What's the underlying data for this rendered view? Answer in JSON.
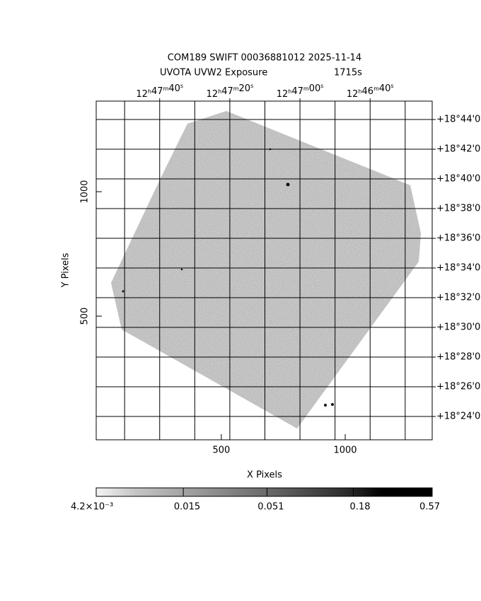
{
  "chart_data": {
    "type": "image",
    "title": "COM189 SWIFT 00036881012 2025-11-14",
    "subtitle": "UVOTA UVW2 Exposure",
    "exposure": "1715s",
    "x_label": "X Pixels",
    "y_label": "Y Pixels",
    "xlim": [
      -5,
      1351
    ],
    "ylim": [
      3,
      1364
    ],
    "xticks": [
      500,
      1000
    ],
    "yticks": [
      500,
      1000
    ],
    "x2lim": [
      46078.1,
      45982.3
    ],
    "x2ticks": [
      {
        "value": 46060,
        "label": "12h47m40s"
      },
      {
        "value": 46040,
        "label": "12h47m20s"
      },
      {
        "value": 46020,
        "label": "12h47m00s"
      },
      {
        "value": 46000,
        "label": "12h46m40s"
      }
    ],
    "x2grid": [
      46070,
      46060,
      46050,
      46040,
      46030,
      46020,
      46010,
      46000,
      45990
    ],
    "y2lim": [
      22.43,
      45.24
    ],
    "y2ticks": [
      {
        "value": 44,
        "label": "+18°44'0"
      },
      {
        "value": 42,
        "label": "+18°42'0"
      },
      {
        "value": 40,
        "label": "+18°40'0"
      },
      {
        "value": 38,
        "label": "+18°38'0"
      },
      {
        "value": 36,
        "label": "+18°36'0"
      },
      {
        "value": 34,
        "label": "+18°34'0"
      },
      {
        "value": 32,
        "label": "+18°32'0"
      },
      {
        "value": 30,
        "label": "+18°30'0"
      },
      {
        "value": 28,
        "label": "+18°28'0"
      },
      {
        "value": 26,
        "label": "+18°26'0"
      },
      {
        "value": 24,
        "label": "+18°24'0"
      }
    ],
    "grid": true,
    "colorbar": {
      "scale": "log",
      "lim": [
        0.0042,
        0.57
      ],
      "ticks": [
        {
          "value": 0.0042,
          "label": "4.2×10⁻³"
        },
        0.015,
        0.051,
        0.18,
        0.57
      ]
    }
  }
}
